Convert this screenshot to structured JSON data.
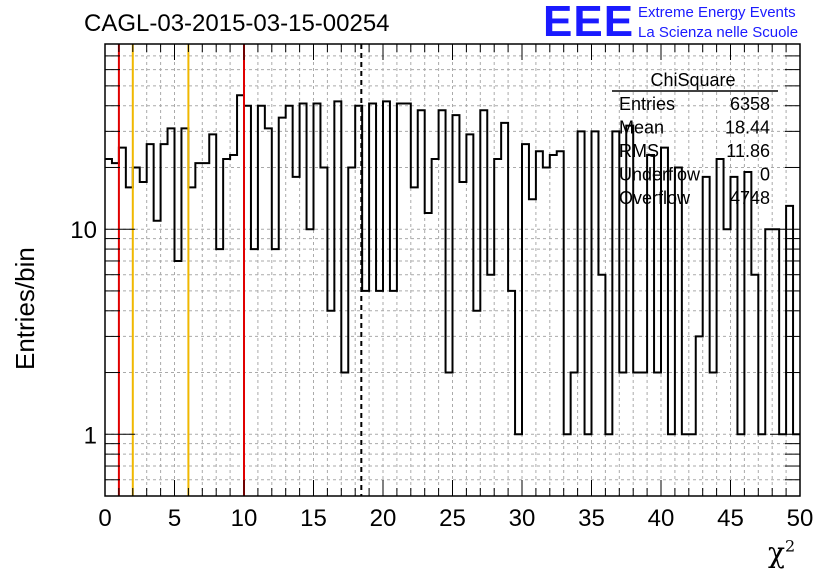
{
  "header": {
    "title": "CAGL-03-2015-03-15-00254",
    "logo_text": "EEE",
    "logo_line1": "Extreme Energy Events",
    "logo_line2": "La Scienza nelle Scuole"
  },
  "stats": {
    "name": "ChiSquare",
    "rows": [
      {
        "label": "Entries",
        "value": "6358"
      },
      {
        "label": "Mean",
        "value": "18.44"
      },
      {
        "label": "RMS",
        "value": "11.86"
      },
      {
        "label": "Underflow",
        "value": "0"
      },
      {
        "label": "Overflow",
        "value": "4748"
      }
    ]
  },
  "chart_data": {
    "type": "histogram",
    "xlabel": "χ",
    "xlabel_sup": "2",
    "ylabel": "Entries/bin",
    "xlim": [
      0,
      50
    ],
    "ylim": [
      0.5,
      80
    ],
    "ylog": true,
    "grid": true,
    "bin_width": 0.5,
    "x_ticks": [
      "0",
      "5",
      "10",
      "15",
      "20",
      "25",
      "30",
      "35",
      "40",
      "45",
      "50"
    ],
    "y_ticks": [
      "1",
      "10"
    ],
    "values": [
      22,
      21,
      25,
      16,
      20,
      17,
      26,
      11,
      26,
      31,
      7,
      31,
      16,
      21,
      21,
      29,
      8,
      22,
      23,
      45,
      40,
      8,
      40,
      31,
      8,
      35,
      40,
      18,
      41,
      10,
      41,
      20,
      4,
      42,
      2,
      20,
      40,
      5,
      41,
      5,
      42,
      5,
      41,
      41,
      16,
      38,
      12,
      22,
      38,
      2,
      36,
      17,
      29,
      4,
      38,
      6,
      22,
      33,
      5,
      1,
      26,
      14,
      24,
      20,
      23,
      24,
      1,
      2,
      30,
      1,
      30,
      6,
      1,
      30,
      2,
      32,
      2,
      2,
      23,
      2,
      25,
      1,
      20,
      1,
      1,
      3,
      18,
      2,
      22,
      10,
      18,
      1,
      19,
      6,
      1,
      10,
      10,
      1,
      13,
      1
    ],
    "vlines": [
      {
        "x": 1,
        "color": "#e00000",
        "style": "solid"
      },
      {
        "x": 2,
        "color": "#f0b800",
        "style": "solid"
      },
      {
        "x": 6,
        "color": "#f0b800",
        "style": "solid"
      },
      {
        "x": 10,
        "color": "#e00000",
        "style": "solid"
      },
      {
        "x": 18.44,
        "color": "#000000",
        "style": "dashed"
      }
    ]
  }
}
